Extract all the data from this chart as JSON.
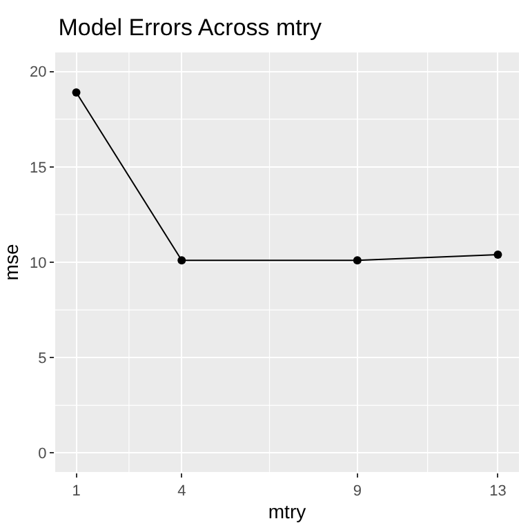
{
  "chart_data": {
    "type": "line",
    "title": "Model Errors Across mtry",
    "xlabel": "mtry",
    "ylabel": "mse",
    "x": [
      1,
      4,
      9,
      13
    ],
    "series": [
      {
        "color": "#000000",
        "values": [
          18.9,
          10.1,
          10.1,
          10.4
        ]
      }
    ],
    "xlim": [
      0.4,
      13.6
    ],
    "xticks": [
      1,
      4,
      9,
      13
    ],
    "ylim": [
      -1,
      21
    ],
    "yticks": [
      0,
      5,
      10,
      15,
      20
    ],
    "grid": true,
    "marker": "circle",
    "line_style": "solid"
  }
}
